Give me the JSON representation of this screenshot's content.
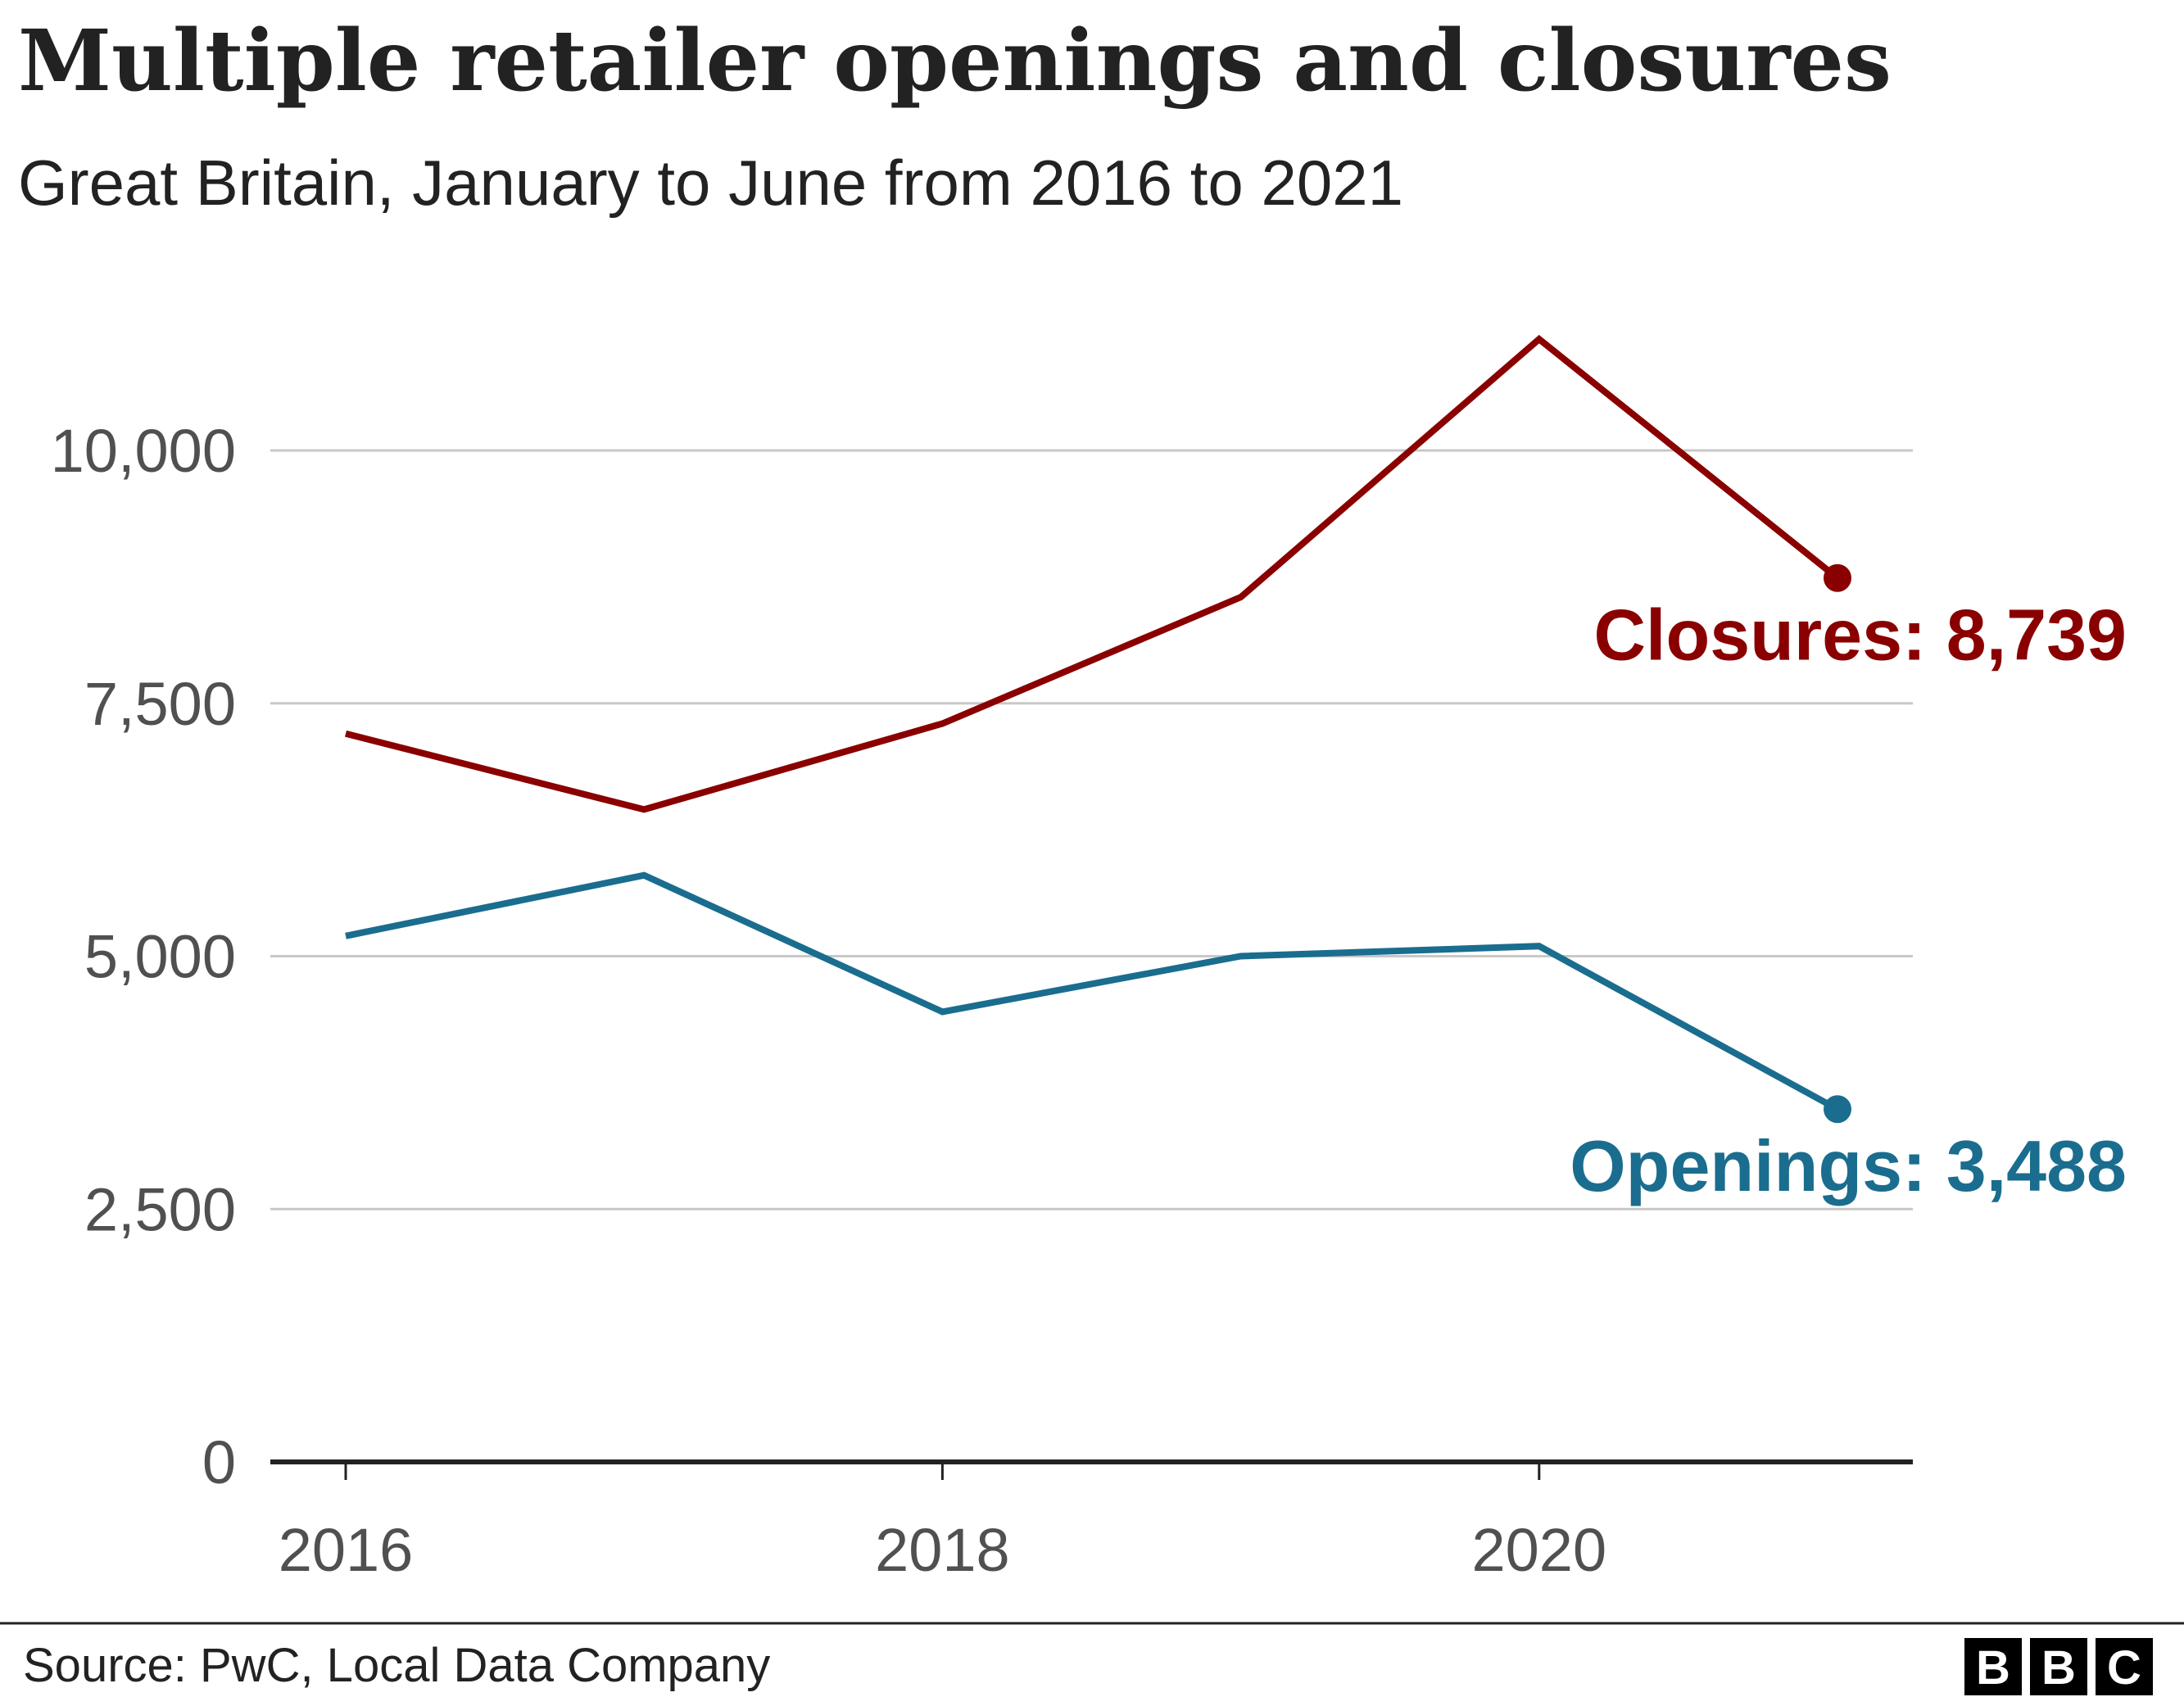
{
  "title": "Multiple retailer openings and closures",
  "subtitle": "Great Britain, January to June from 2016 to 2021",
  "source": "Source: PwC, Local Data Company",
  "logo": "BBC",
  "chart_data": {
    "type": "line",
    "title": "Multiple retailer openings and closures",
    "subtitle": "Great Britain, January to June from 2016 to 2021",
    "x": [
      2016,
      2017,
      2018,
      2019,
      2020,
      2021
    ],
    "xticks": [
      2016,
      2018,
      2020
    ],
    "xtick_labels": [
      "2016",
      "2018",
      "2020"
    ],
    "xlim": [
      2016,
      2021
    ],
    "ylim": [
      0,
      10000
    ],
    "yticks": [
      0,
      2500,
      5000,
      7500,
      10000
    ],
    "ytick_labels": [
      "0",
      "2,500",
      "5,000",
      "7,500",
      "10,000"
    ],
    "grid": true,
    "legend": "direct labels at line ends",
    "series": [
      {
        "name": "Closures",
        "color": "#8a0000",
        "values": [
          7200,
          6450,
          7300,
          8550,
          11100,
          8739
        ],
        "end_label": "Closures: 8,739"
      },
      {
        "name": "Openings",
        "color": "#1a6d8e",
        "values": [
          5200,
          5800,
          4450,
          5000,
          5100,
          3488
        ],
        "end_label": "Openings: 3,488"
      }
    ]
  }
}
